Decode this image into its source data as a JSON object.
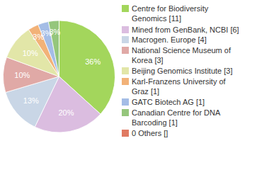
{
  "chart_data": {
    "type": "pie",
    "categories": [
      "Centre for Biodiversity Genomics [11]",
      "Mined from GenBank, NCBI [6]",
      "Macrogen. Europe [4]",
      "National Science Museum of Korea [3]",
      "Beijing Genomics Institute [3]",
      "Karl-Franzens University of Graz [1]",
      "GATC Biotech AG [1]",
      "Canadian Centre for DNA Barcoding [1]",
      "0 Others []"
    ],
    "values": [
      36,
      20,
      13,
      10,
      10,
      3,
      3,
      3,
      0
    ],
    "value_labels": [
      "36%",
      "20%",
      "13%",
      "10%",
      "10%",
      "3%",
      "3%",
      "3%",
      null
    ],
    "colors": [
      "#a3d65c",
      "#dbbde0",
      "#c9d6e6",
      "#e0a9a6",
      "#e2e6a8",
      "#f2b278",
      "#a4bde6",
      "#95c67c",
      "#e07a62"
    ],
    "data_labels": true,
    "legend": "right"
  }
}
